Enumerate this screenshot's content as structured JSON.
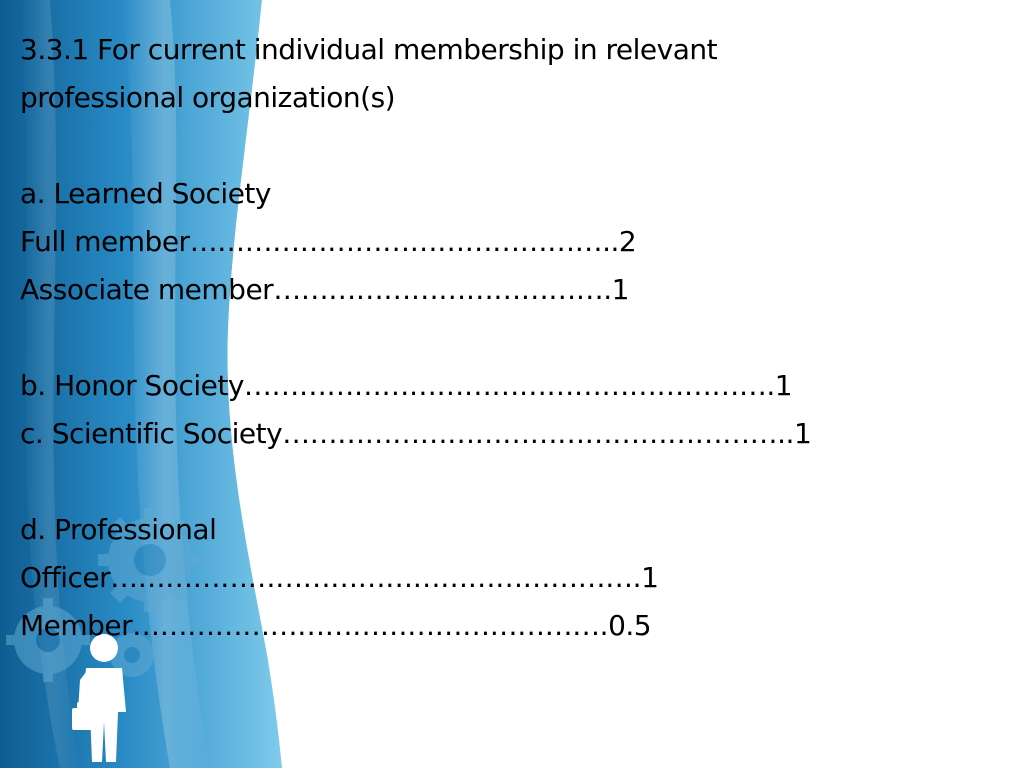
{
  "heading": {
    "line1": "3.3.1 For current individual membership in relevant",
    "line2": "professional organization(s)"
  },
  "items": {
    "learned_society": "a. Learned Society",
    "full_member": "Full member………………………………………..2",
    "associate_member": "Associate member……………………………….1",
    "honor_society": "b. Honor Society………………………………………………….1",
    "scientific_society": "c. Scientific Society………………………………………………..1",
    "professional": "d. Professional",
    "officer": "Officer………………………………………………….1",
    "member": "Member…………………………………………….0.5"
  },
  "theme": {
    "panel_dark": "#1b6fa3",
    "panel_light": "#6fc3e6",
    "text": "#000000"
  },
  "icons": {
    "figure": "businessman-with-briefcase-icon",
    "gears": "gears-icon"
  }
}
